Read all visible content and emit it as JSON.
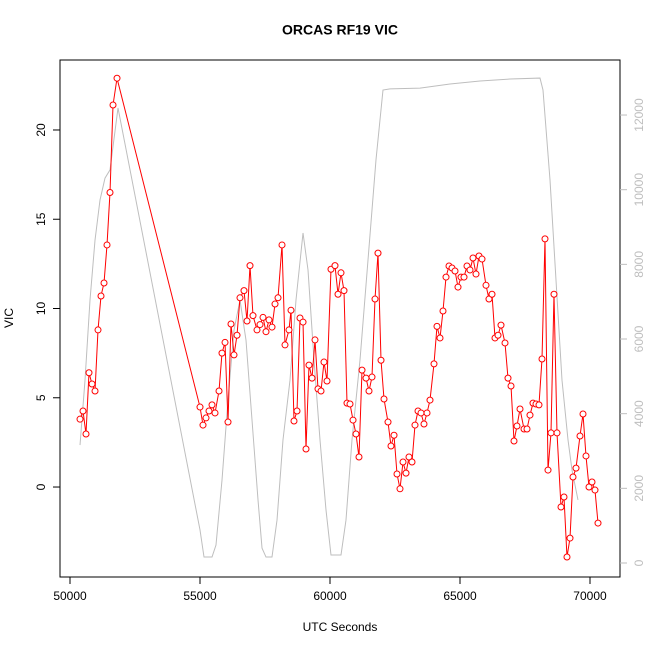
{
  "chart_data": {
    "type": "line",
    "title": "ORCAS RF19 VIC",
    "xlabel": "UTC Seconds",
    "ylabel": "VIC",
    "xlim": [
      49615,
      71154
    ],
    "xticks": [
      50000,
      55000,
      60000,
      65000,
      70000
    ],
    "ylim": [
      -5.04,
      23.92
    ],
    "yticks": [
      0,
      5,
      10,
      15,
      20
    ],
    "y2lim": [
      -375,
      13474
    ],
    "y2ticks": [
      0,
      2000,
      4000,
      6000,
      8000,
      10000,
      12000
    ],
    "y2color": "#bebebe",
    "series": [
      {
        "color": "#ff0000",
        "markers": true,
        "x": [
          50385,
          50500,
          50615,
          50730,
          50846,
          50962,
          51077,
          51192,
          51308,
          51423,
          51538,
          51654,
          51808,
          55000,
          55115,
          55231,
          55346,
          55462,
          55577,
          55731,
          55846,
          55962,
          56077,
          56192,
          56308,
          56423,
          56538,
          56692,
          56808,
          56923,
          57038,
          57192,
          57308,
          57423,
          57538,
          57654,
          57769,
          57885,
          58000,
          58154,
          58269,
          58423,
          58500,
          58615,
          58731,
          58846,
          58962,
          59077,
          59192,
          59308,
          59423,
          59538,
          59654,
          59769,
          59885,
          60038,
          60192,
          60308,
          60423,
          60538,
          60654,
          60769,
          60885,
          61000,
          61115,
          61231,
          61385,
          61500,
          61615,
          61731,
          61846,
          61962,
          62077,
          62231,
          62346,
          62462,
          62577,
          62692,
          62808,
          62923,
          63038,
          63154,
          63269,
          63385,
          63500,
          63615,
          63731,
          63846,
          64000,
          64115,
          64231,
          64346,
          64462,
          64577,
          64692,
          64808,
          64923,
          65038,
          65154,
          65269,
          65385,
          65500,
          65615,
          65731,
          65846,
          66000,
          66115,
          66231,
          66346,
          66462,
          66577,
          66731,
          66846,
          66962,
          67077,
          67192,
          67308,
          67462,
          67577,
          67692,
          67808,
          67923,
          68038,
          68154,
          68269,
          68385,
          68500,
          68615,
          68731,
          68885,
          69000,
          69115,
          69231,
          69346,
          69462,
          69615,
          69731,
          69846,
          69962,
          70077,
          70192,
          70308
        ],
        "values": [
          3.8,
          4.26,
          2.97,
          6.4,
          5.77,
          5.38,
          8.8,
          10.7,
          11.43,
          13.56,
          16.5,
          21.4,
          22.9,
          4.48,
          3.47,
          3.87,
          4.26,
          4.6,
          4.15,
          5.38,
          7.5,
          8.1,
          3.64,
          9.13,
          7.4,
          8.5,
          10.6,
          11.0,
          9.3,
          12.4,
          9.6,
          8.8,
          9.1,
          9.5,
          8.7,
          9.36,
          8.96,
          10.25,
          10.6,
          13.56,
          7.96,
          8.8,
          9.9,
          3.7,
          4.26,
          9.47,
          9.24,
          2.13,
          6.83,
          6.1,
          8.24,
          5.5,
          5.38,
          7.0,
          5.94,
          12.2,
          12.4,
          10.8,
          12.0,
          11.0,
          4.7,
          4.65,
          3.75,
          2.97,
          1.68,
          6.55,
          6.1,
          5.38,
          6.16,
          10.53,
          13.1,
          7.1,
          4.93,
          3.64,
          2.3,
          2.9,
          0.73,
          -0.1,
          1.4,
          0.78,
          1.68,
          1.4,
          3.47,
          4.26,
          4.15,
          3.53,
          4.15,
          4.87,
          6.9,
          9.0,
          8.35,
          9.86,
          11.76,
          12.38,
          12.27,
          12.1,
          11.2,
          11.76,
          11.76,
          12.38,
          12.16,
          12.83,
          11.93,
          12.94,
          12.77,
          11.3,
          10.53,
          10.8,
          8.35,
          8.5,
          9.07,
          8.07,
          6.1,
          5.66,
          2.58,
          3.42,
          4.37,
          3.25,
          3.25,
          4.03,
          4.7,
          4.65,
          4.6,
          7.17,
          13.9,
          0.95,
          3.03,
          10.8,
          3.03,
          -1.12,
          -0.56,
          -3.92,
          -2.86,
          0.56,
          1.06,
          2.86,
          4.09,
          1.74,
          0.0,
          0.28,
          -0.17,
          -2.02
        ]
      },
      {
        "color": "#bebebe",
        "axis": "y2",
        "markers": false,
        "x": [
          50385,
          50577,
          50769,
          50962,
          51154,
          51346,
          51538,
          51846,
          55000,
          55154,
          55462,
          55615,
          55846,
          56077,
          56308,
          56538,
          56769,
          57000,
          57231,
          57385,
          57538,
          57769,
          57962,
          58192,
          58462,
          58692,
          58962,
          59154,
          59385,
          59615,
          59846,
          60038,
          60423,
          60615,
          60846,
          61154,
          61462,
          61769,
          62038,
          62308,
          63462,
          64615,
          65769,
          66923,
          68077,
          68192,
          68462,
          68692,
          68923,
          69154,
          69308,
          69538
        ],
        "values": [
          3160,
          4900,
          7045,
          8650,
          9725,
          10310,
          10530,
          12190,
          885,
          160,
          160,
          480,
          2220,
          4370,
          6240,
          7045,
          5970,
          3830,
          1690,
          400,
          160,
          160,
          1150,
          3300,
          4900,
          7045,
          8840,
          7850,
          5440,
          3300,
          1420,
          215,
          215,
          1150,
          3300,
          5440,
          8120,
          10800,
          12670,
          12700,
          12720,
          12830,
          12910,
          12965,
          12990,
          12670,
          10260,
          7580,
          4900,
          3300,
          2490,
          1690
        ]
      }
    ]
  }
}
